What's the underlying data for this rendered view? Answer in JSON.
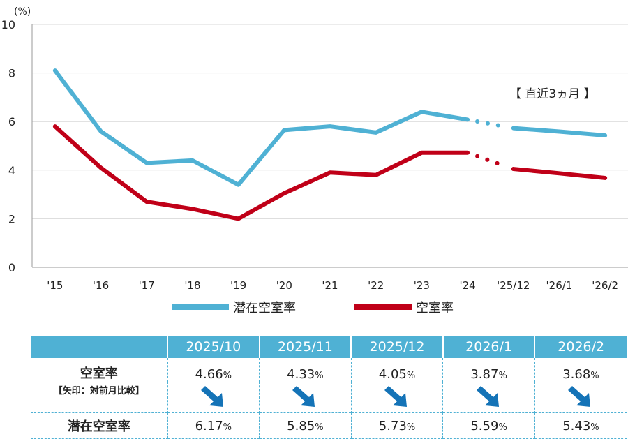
{
  "chart_data": {
    "type": "line",
    "y_unit_label": "(%)",
    "ylim": [
      0,
      10
    ],
    "y_ticks": [
      0,
      2,
      4,
      6,
      8,
      10
    ],
    "categories": [
      "'15",
      "'16",
      "'17",
      "'18",
      "'19",
      "'20",
      "'21",
      "'22",
      "'23",
      "'24",
      "'25/12",
      "'26/1",
      "'26/2"
    ],
    "annual_count": 10,
    "annotation": "【 直近3ヵ月 】",
    "series": [
      {
        "name": "潜在空室率",
        "color": "#4fb1d4",
        "values": [
          8.1,
          5.6,
          4.3,
          4.4,
          3.4,
          5.65,
          5.8,
          5.55,
          6.4,
          6.08,
          5.73,
          5.59,
          5.43
        ]
      },
      {
        "name": "空室率",
        "color": "#c00018",
        "values": [
          5.8,
          4.1,
          2.7,
          2.4,
          2.0,
          3.05,
          3.9,
          3.8,
          4.72,
          4.72,
          4.05,
          3.87,
          3.68
        ]
      }
    ]
  },
  "legend": {
    "potential": "潜在空室率",
    "vacancy": "空室率"
  },
  "table": {
    "months": [
      "2025/10",
      "2025/11",
      "2025/12",
      "2026/1",
      "2026/2"
    ],
    "vacancy_label": "空室率",
    "arrow_note": "【矢印：対前月比較】",
    "potential_label": "潜在空室率",
    "percent_sign": "%",
    "vacancy_values": [
      "4.66",
      "4.33",
      "4.05",
      "3.87",
      "3.68"
    ],
    "potential_values": [
      "6.17",
      "5.85",
      "5.73",
      "5.59",
      "5.43"
    ],
    "arrow_icon": "arrow-down-right-icon"
  }
}
